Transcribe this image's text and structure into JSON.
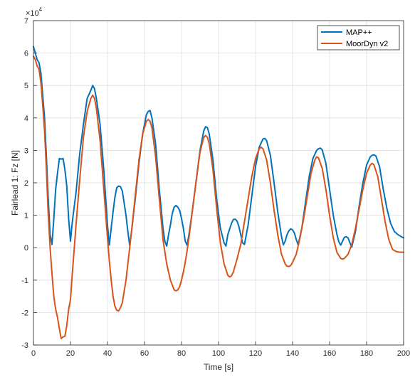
{
  "chart_data": {
    "type": "line",
    "title": "",
    "xlabel": "Time [s]",
    "ylabel": "Fairlead 1: Fz [N]",
    "exponent_label": "×10",
    "exponent_power": "4",
    "xlim": [
      0,
      200
    ],
    "ylim": [
      -30000,
      70000
    ],
    "x_ticks": [
      0,
      20,
      40,
      60,
      80,
      100,
      120,
      140,
      160,
      180,
      200
    ],
    "y_ticks": [
      -3,
      -2,
      -1,
      0,
      1,
      2,
      3,
      4,
      5,
      6,
      7
    ],
    "grid": true,
    "legend_position": "top-right",
    "series": [
      {
        "name": "MAP++",
        "color": "#0072BD",
        "points": [
          [
            0,
            62000
          ],
          [
            1,
            60000
          ],
          [
            2,
            58000
          ],
          [
            3,
            57000
          ],
          [
            4,
            54000
          ],
          [
            5,
            47000
          ],
          [
            6,
            40000
          ],
          [
            7,
            28000
          ],
          [
            8,
            15000
          ],
          [
            9,
            4000
          ],
          [
            10,
            1000
          ],
          [
            11,
            9000
          ],
          [
            12,
            18000
          ],
          [
            13,
            23000
          ],
          [
            14,
            27500
          ],
          [
            15,
            27300
          ],
          [
            16,
            27500
          ],
          [
            17,
            24000
          ],
          [
            18,
            19000
          ],
          [
            19,
            9000
          ],
          [
            20,
            2000
          ],
          [
            21,
            8000
          ],
          [
            23,
            17000
          ],
          [
            25,
            29000
          ],
          [
            27,
            38000
          ],
          [
            29,
            46000
          ],
          [
            31,
            48500
          ],
          [
            32,
            50000
          ],
          [
            33,
            49000
          ],
          [
            34,
            46000
          ],
          [
            36,
            38000
          ],
          [
            38,
            24000
          ],
          [
            40,
            7000
          ],
          [
            41,
            800
          ],
          [
            42,
            6000
          ],
          [
            43,
            11000
          ],
          [
            44,
            15500
          ],
          [
            45,
            18500
          ],
          [
            46,
            19000
          ],
          [
            47,
            18800
          ],
          [
            48,
            17500
          ],
          [
            50,
            10000
          ],
          [
            51,
            5000
          ],
          [
            52,
            700
          ],
          [
            53,
            5000
          ],
          [
            55,
            15000
          ],
          [
            57,
            26000
          ],
          [
            59,
            35000
          ],
          [
            61,
            41000
          ],
          [
            62,
            42000
          ],
          [
            63,
            42300
          ],
          [
            64,
            40000
          ],
          [
            66,
            32000
          ],
          [
            68,
            18000
          ],
          [
            70,
            6000
          ],
          [
            71,
            2000
          ],
          [
            72,
            500
          ],
          [
            73,
            4000
          ],
          [
            74,
            7000
          ],
          [
            75,
            10500
          ],
          [
            76,
            12500
          ],
          [
            77,
            13000
          ],
          [
            78,
            12500
          ],
          [
            79,
            11500
          ],
          [
            80,
            9000
          ],
          [
            81,
            6000
          ],
          [
            82,
            2000
          ],
          [
            83,
            800
          ],
          [
            84,
            4000
          ],
          [
            86,
            12000
          ],
          [
            88,
            21000
          ],
          [
            90,
            30000
          ],
          [
            92,
            36000
          ],
          [
            93,
            37300
          ],
          [
            94,
            37000
          ],
          [
            95,
            35000
          ],
          [
            97,
            27000
          ],
          [
            99,
            15000
          ],
          [
            101,
            6000
          ],
          [
            103,
            1500
          ],
          [
            104,
            500
          ],
          [
            105,
            4000
          ],
          [
            107,
            7500
          ],
          [
            108,
            8700
          ],
          [
            109,
            8800
          ],
          [
            110,
            8200
          ],
          [
            111,
            6500
          ],
          [
            112,
            4000
          ],
          [
            113,
            1500
          ],
          [
            114,
            1000
          ],
          [
            116,
            7000
          ],
          [
            118,
            16000
          ],
          [
            120,
            25000
          ],
          [
            122,
            31000
          ],
          [
            124,
            33500
          ],
          [
            125,
            33700
          ],
          [
            126,
            33000
          ],
          [
            128,
            28500
          ],
          [
            130,
            20000
          ],
          [
            132,
            11000
          ],
          [
            134,
            3500
          ],
          [
            135,
            900
          ],
          [
            136,
            2000
          ],
          [
            137,
            4000
          ],
          [
            138,
            5200
          ],
          [
            139,
            5800
          ],
          [
            140,
            5500
          ],
          [
            141,
            4500
          ],
          [
            142,
            2500
          ],
          [
            143,
            900
          ],
          [
            145,
            6000
          ],
          [
            147,
            14000
          ],
          [
            149,
            22000
          ],
          [
            151,
            27500
          ],
          [
            153,
            30000
          ],
          [
            154,
            30500
          ],
          [
            155,
            30700
          ],
          [
            156,
            30200
          ],
          [
            158,
            26000
          ],
          [
            160,
            18000
          ],
          [
            162,
            10000
          ],
          [
            164,
            4000
          ],
          [
            165,
            1800
          ],
          [
            166,
            800
          ],
          [
            167,
            2000
          ],
          [
            168,
            3200
          ],
          [
            169,
            3400
          ],
          [
            170,
            3000
          ],
          [
            171,
            1500
          ],
          [
            172,
            200
          ],
          [
            174,
            5000
          ],
          [
            176,
            13000
          ],
          [
            178,
            20000
          ],
          [
            180,
            25500
          ],
          [
            182,
            28000
          ],
          [
            183,
            28500
          ],
          [
            184,
            28600
          ],
          [
            185,
            28300
          ],
          [
            187,
            25000
          ],
          [
            189,
            18000
          ],
          [
            191,
            12000
          ],
          [
            193,
            7500
          ],
          [
            195,
            5000
          ],
          [
            197,
            4000
          ],
          [
            199,
            3300
          ],
          [
            200,
            3000
          ]
        ]
      },
      {
        "name": "MoorDyn v2",
        "color": "#D95319",
        "points": [
          [
            0,
            59000
          ],
          [
            1,
            58000
          ],
          [
            2,
            56000
          ],
          [
            3,
            55000
          ],
          [
            4,
            51000
          ],
          [
            5,
            44000
          ],
          [
            6,
            36000
          ],
          [
            7,
            24000
          ],
          [
            8,
            10000
          ],
          [
            9,
            0
          ],
          [
            10,
            -8000
          ],
          [
            11,
            -15000
          ],
          [
            12,
            -19000
          ],
          [
            13,
            -21500
          ],
          [
            14,
            -25000
          ],
          [
            15,
            -28000
          ],
          [
            16,
            -27500
          ],
          [
            17,
            -27300
          ],
          [
            18,
            -24000
          ],
          [
            19,
            -19000
          ],
          [
            20,
            -16000
          ],
          [
            21,
            -8000
          ],
          [
            23,
            7000
          ],
          [
            25,
            21000
          ],
          [
            27,
            34000
          ],
          [
            29,
            42000
          ],
          [
            31,
            46000
          ],
          [
            32,
            47000
          ],
          [
            33,
            46000
          ],
          [
            34,
            43000
          ],
          [
            36,
            33000
          ],
          [
            38,
            18000
          ],
          [
            40,
            3000
          ],
          [
            41,
            -4000
          ],
          [
            42,
            -10000
          ],
          [
            43,
            -15000
          ],
          [
            44,
            -18000
          ],
          [
            45,
            -19300
          ],
          [
            46,
            -19500
          ],
          [
            47,
            -18500
          ],
          [
            48,
            -17000
          ],
          [
            50,
            -10000
          ],
          [
            51,
            -5000
          ],
          [
            52,
            0
          ],
          [
            53,
            5000
          ],
          [
            55,
            16000
          ],
          [
            57,
            27000
          ],
          [
            59,
            35000
          ],
          [
            61,
            39000
          ],
          [
            62,
            39500
          ],
          [
            63,
            39000
          ],
          [
            64,
            37000
          ],
          [
            66,
            28000
          ],
          [
            68,
            15000
          ],
          [
            70,
            2500
          ],
          [
            72,
            -5000
          ],
          [
            74,
            -10000
          ],
          [
            76,
            -13000
          ],
          [
            77,
            -13300
          ],
          [
            78,
            -13000
          ],
          [
            79,
            -12000
          ],
          [
            80,
            -10000
          ],
          [
            81,
            -7500
          ],
          [
            82,
            -4500
          ],
          [
            83,
            -1000
          ],
          [
            84,
            3000
          ],
          [
            86,
            12000
          ],
          [
            88,
            21000
          ],
          [
            90,
            29500
          ],
          [
            92,
            34000
          ],
          [
            93,
            34600
          ],
          [
            94,
            34000
          ],
          [
            95,
            32000
          ],
          [
            97,
            24000
          ],
          [
            99,
            12000
          ],
          [
            101,
            1500
          ],
          [
            103,
            -5000
          ],
          [
            105,
            -8500
          ],
          [
            106,
            -9000
          ],
          [
            107,
            -8700
          ],
          [
            108,
            -7500
          ],
          [
            110,
            -3500
          ],
          [
            112,
            1000
          ],
          [
            114,
            8000
          ],
          [
            116,
            15000
          ],
          [
            118,
            22000
          ],
          [
            120,
            27500
          ],
          [
            122,
            30500
          ],
          [
            123,
            31000
          ],
          [
            124,
            30500
          ],
          [
            126,
            27000
          ],
          [
            128,
            20000
          ],
          [
            130,
            11500
          ],
          [
            132,
            4000
          ],
          [
            134,
            -2000
          ],
          [
            136,
            -5000
          ],
          [
            137,
            -5700
          ],
          [
            138,
            -5800
          ],
          [
            139,
            -5500
          ],
          [
            140,
            -4500
          ],
          [
            142,
            -2000
          ],
          [
            144,
            3000
          ],
          [
            146,
            9000
          ],
          [
            148,
            16000
          ],
          [
            150,
            23000
          ],
          [
            152,
            27000
          ],
          [
            153,
            28000
          ],
          [
            154,
            27700
          ],
          [
            156,
            24500
          ],
          [
            158,
            18000
          ],
          [
            160,
            10000
          ],
          [
            162,
            3000
          ],
          [
            164,
            -1500
          ],
          [
            166,
            -3300
          ],
          [
            167,
            -3500
          ],
          [
            168,
            -3300
          ],
          [
            170,
            -2000
          ],
          [
            172,
            1000
          ],
          [
            174,
            6000
          ],
          [
            176,
            12000
          ],
          [
            178,
            18000
          ],
          [
            180,
            23000
          ],
          [
            182,
            25500
          ],
          [
            183,
            26000
          ],
          [
            184,
            25500
          ],
          [
            186,
            22000
          ],
          [
            188,
            15000
          ],
          [
            190,
            8000
          ],
          [
            192,
            2500
          ],
          [
            194,
            -500
          ],
          [
            196,
            -1200
          ],
          [
            198,
            -1400
          ],
          [
            200,
            -1400
          ]
        ]
      }
    ]
  }
}
